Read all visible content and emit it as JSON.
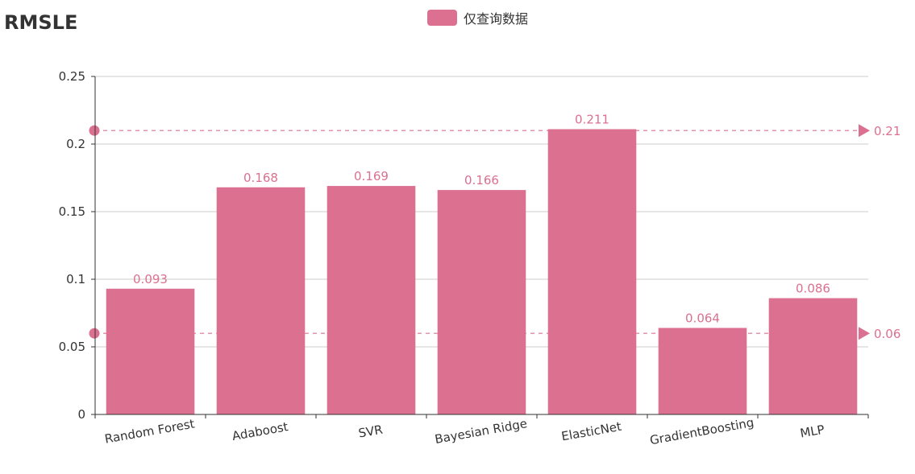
{
  "chart_data": {
    "type": "bar",
    "title": "RMSLE",
    "legend": {
      "position": "top-center"
    },
    "series": [
      {
        "name": "仅查询数据",
        "color": "#dc7090",
        "values": [
          0.093,
          0.168,
          0.169,
          0.166,
          0.211,
          0.064,
          0.086
        ]
      }
    ],
    "categories": [
      "Random Forest",
      "Adaboost",
      "SVR",
      "Bayesian Ridge",
      "ElasticNet",
      "GradientBoosting",
      "MLP"
    ],
    "ylim": [
      0,
      0.25
    ],
    "yticks": [
      {
        "value": 0,
        "label": "0"
      },
      {
        "value": 0.05,
        "label": "0.05"
      },
      {
        "value": 0.1,
        "label": "0.1"
      },
      {
        "value": 0.15,
        "label": "0.15"
      },
      {
        "value": 0.2,
        "label": "0.2"
      },
      {
        "value": 0.25,
        "label": "0.25"
      }
    ],
    "data_labels": [
      "0.093",
      "0.168",
      "0.169",
      "0.166",
      "0.211",
      "0.064",
      "0.086"
    ],
    "mark_lines": [
      {
        "value": 0.21,
        "label": "0.21"
      },
      {
        "value": 0.06,
        "label": "0.06"
      }
    ],
    "grid": true,
    "xlabel": "",
    "ylabel": ""
  }
}
